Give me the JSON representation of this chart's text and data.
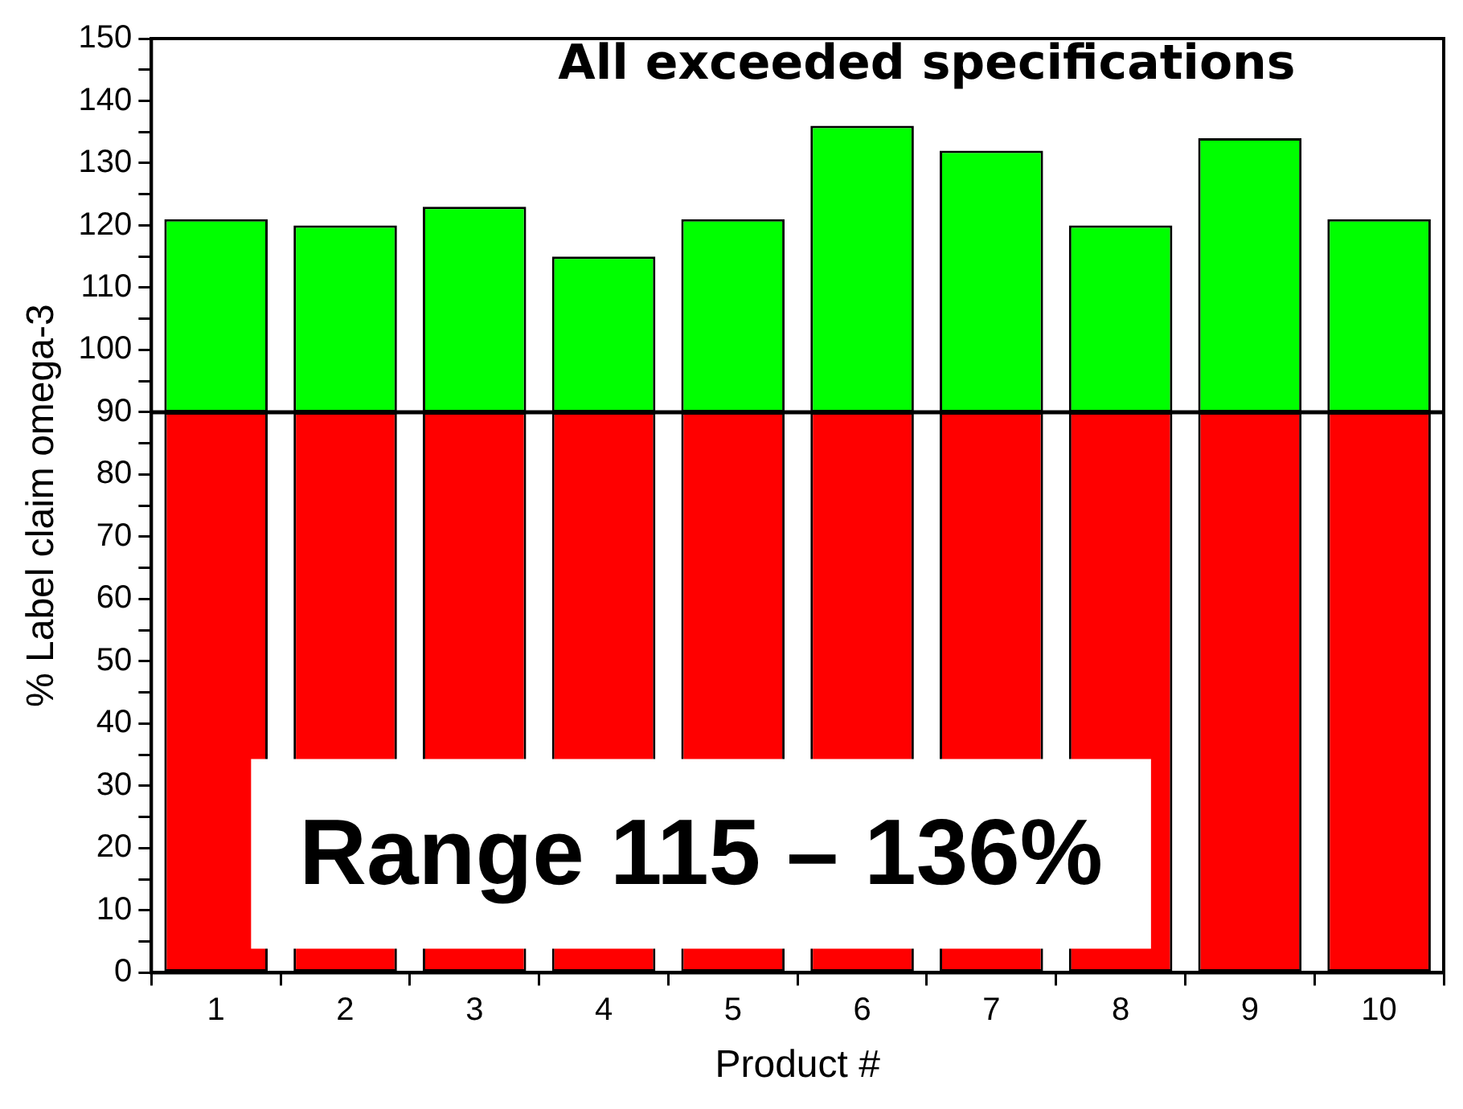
{
  "chart_data": {
    "type": "bar",
    "title": "All exceeded specifications",
    "xlabel": "Product #",
    "ylabel": "% Label claim omega-3",
    "categories": [
      "1",
      "2",
      "3",
      "4",
      "5",
      "6",
      "7",
      "8",
      "9",
      "10"
    ],
    "stacked": true,
    "series": [
      {
        "color": "#ff0000",
        "values": [
          90,
          90,
          90,
          90,
          90,
          90,
          90,
          90,
          90,
          90
        ]
      },
      {
        "color": "#00ff00",
        "values": [
          31,
          30,
          33,
          25,
          31,
          46,
          42,
          30,
          44,
          31
        ]
      }
    ],
    "ylim": [
      0,
      150
    ],
    "yticks": [
      0,
      {
        "value": 5,
        "label": null
      },
      10,
      {
        "value": 15,
        "label": null
      },
      20,
      {
        "value": 25,
        "label": null
      },
      30,
      {
        "value": 35,
        "label": null
      },
      40,
      {
        "value": 45,
        "label": null
      },
      50,
      {
        "value": 55,
        "label": null
      },
      60,
      {
        "value": 65,
        "label": null
      },
      70,
      {
        "value": 75,
        "label": null
      },
      80,
      {
        "value": 85,
        "label": null
      },
      90,
      {
        "value": 95,
        "label": null
      },
      100,
      {
        "value": 105,
        "label": null
      },
      110,
      {
        "value": 115,
        "label": null
      },
      120,
      {
        "value": 125,
        "label": null
      },
      130,
      {
        "value": 135,
        "label": null
      },
      140,
      {
        "value": 145,
        "label": null
      },
      150
    ],
    "ref_lines": [
      {
        "axis": "y",
        "value": 90,
        "color": "#000000"
      }
    ],
    "annotations": [
      "Range 115 – 136%"
    ],
    "grid": false,
    "legend": false
  }
}
